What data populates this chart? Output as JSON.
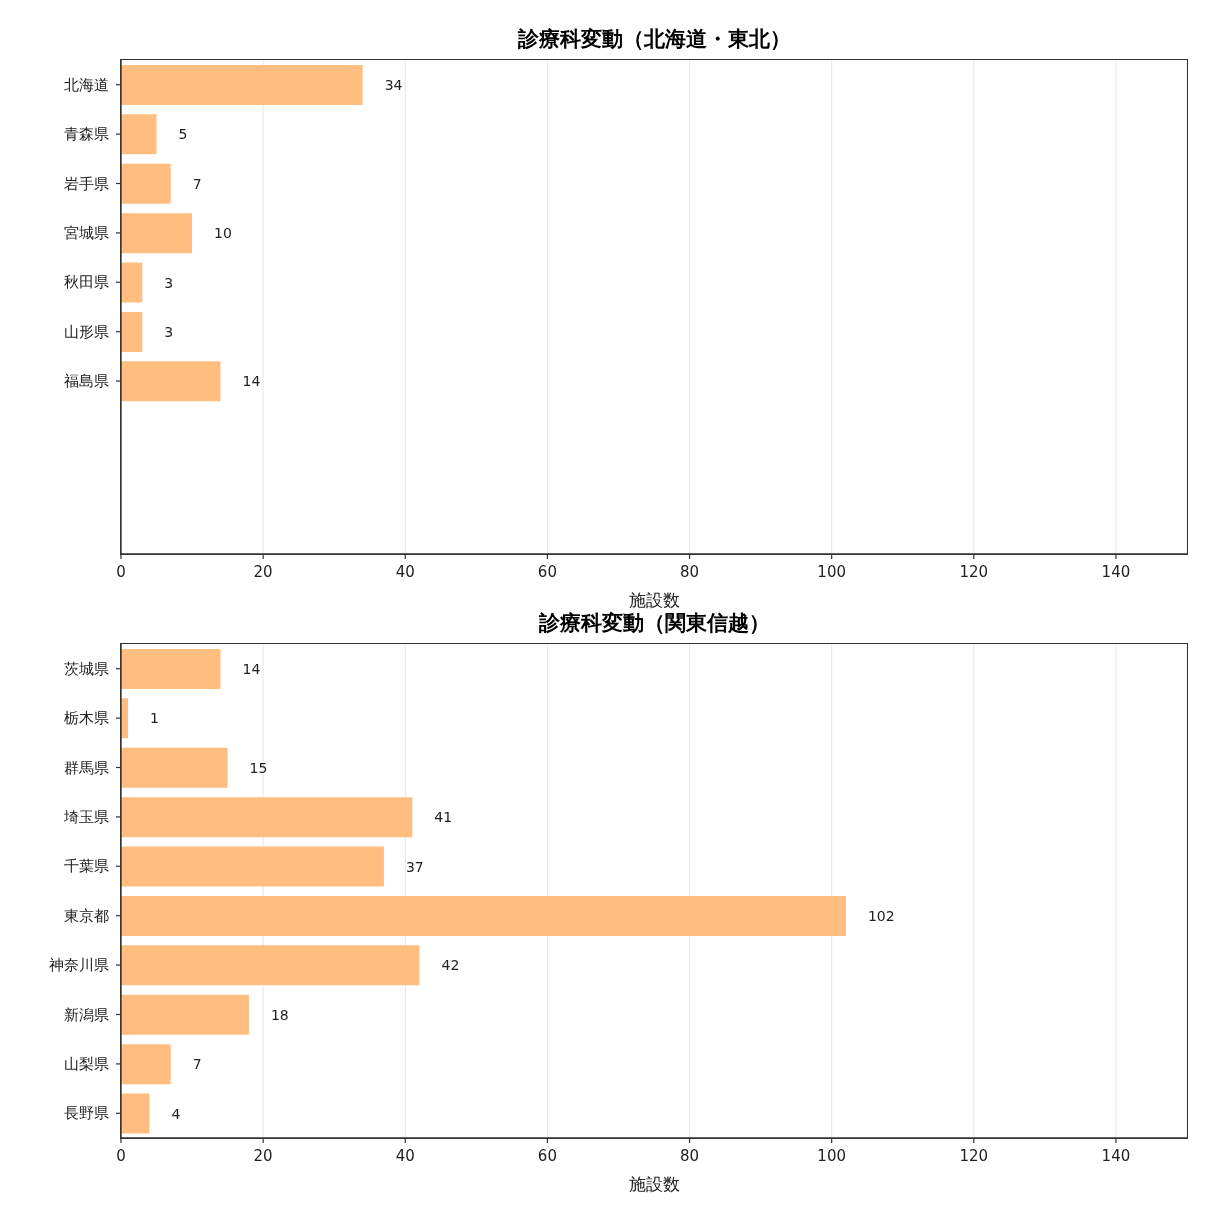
{
  "chart_data": [
    {
      "type": "bar",
      "orientation": "horizontal",
      "title": "診療科変動（北海道・東北）",
      "xlabel": "施設数",
      "categories": [
        "北海道",
        "青森県",
        "岩手県",
        "宮城県",
        "秋田県",
        "山形県",
        "福島県",
        null,
        null,
        null
      ],
      "values": [
        34,
        5,
        7,
        10,
        3,
        3,
        14,
        null,
        null,
        null
      ],
      "color": "#ffbe80",
      "xlim": [
        0,
        150
      ],
      "xticks": [
        0,
        20,
        40,
        60,
        80,
        100,
        120,
        140
      ],
      "grid": "x",
      "data_labels": true
    },
    {
      "type": "bar",
      "orientation": "horizontal",
      "title": "診療科変動（関東信越）",
      "xlabel": "施設数",
      "categories": [
        "茨城県",
        "栃木県",
        "群馬県",
        "埼玉県",
        "千葉県",
        "東京都",
        "神奈川県",
        "新潟県",
        "山梨県",
        "長野県"
      ],
      "values": [
        14,
        1,
        15,
        41,
        37,
        102,
        42,
        18,
        7,
        4
      ],
      "color": "#ffbe80",
      "xlim": [
        0,
        150
      ],
      "xticks": [
        0,
        20,
        40,
        60,
        80,
        100,
        120,
        140
      ],
      "grid": "x",
      "data_labels": true
    }
  ]
}
